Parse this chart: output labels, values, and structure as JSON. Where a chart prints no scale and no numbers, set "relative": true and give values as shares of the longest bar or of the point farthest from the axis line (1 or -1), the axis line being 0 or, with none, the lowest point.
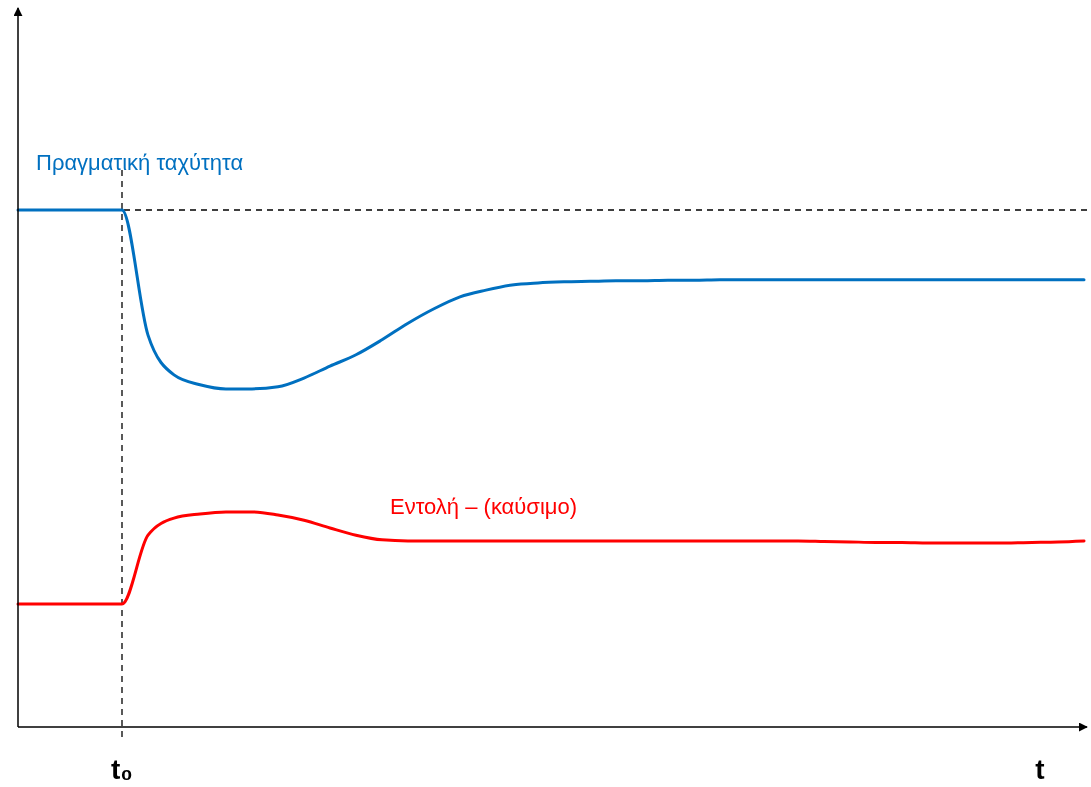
{
  "chart_data": {
    "type": "line",
    "relative": true,
    "xlabel": "t",
    "categories": [
      null,
      null,
      null,
      null,
      null,
      null,
      null,
      null,
      null,
      null,
      null,
      null,
      null,
      null,
      null,
      null,
      null,
      null,
      null,
      null,
      null,
      null,
      null,
      null,
      null,
      null,
      null,
      null,
      null,
      null,
      null,
      null,
      null,
      null,
      null,
      null,
      null,
      null,
      null,
      null,
      null,
      null
    ],
    "annotations": [
      "t₀"
    ],
    "series": [
      {
        "name": "Πραγματική ταχύτητα",
        "color": "#0070c0",
        "values": [
          1,
          1,
          1,
          1,
          1,
          0.758,
          0.681,
          0.662,
          0.654,
          0.654,
          0.658,
          0.675,
          0.698,
          0.72,
          0.749,
          0.781,
          0.809,
          0.832,
          0.845,
          0.855,
          0.859,
          0.861,
          0.862,
          0.863,
          0.863,
          0.864,
          0.864,
          0.865,
          0.865,
          0.865,
          0.865,
          0.865,
          0.865,
          0.865,
          0.865,
          0.865,
          0.865,
          0.865,
          0.865,
          0.865,
          0.865,
          0.865
        ]
      },
      {
        "name": "Εντολή – (καύσιμο)",
        "color": "#ff0000",
        "values": [
          0.238,
          0.238,
          0.238,
          0.238,
          0.238,
          0.371,
          0.404,
          0.412,
          0.416,
          0.416,
          0.41,
          0.4,
          0.385,
          0.371,
          0.362,
          0.36,
          0.36,
          0.36,
          0.36,
          0.36,
          0.36,
          0.36,
          0.36,
          0.36,
          0.36,
          0.36,
          0.36,
          0.36,
          0.36,
          0.36,
          0.36,
          0.359,
          0.358,
          0.357,
          0.357,
          0.356,
          0.356,
          0.356,
          0.356,
          0.357,
          0.358,
          0.36
        ]
      }
    ],
    "marker": "none",
    "line_style": "solid"
  }
}
